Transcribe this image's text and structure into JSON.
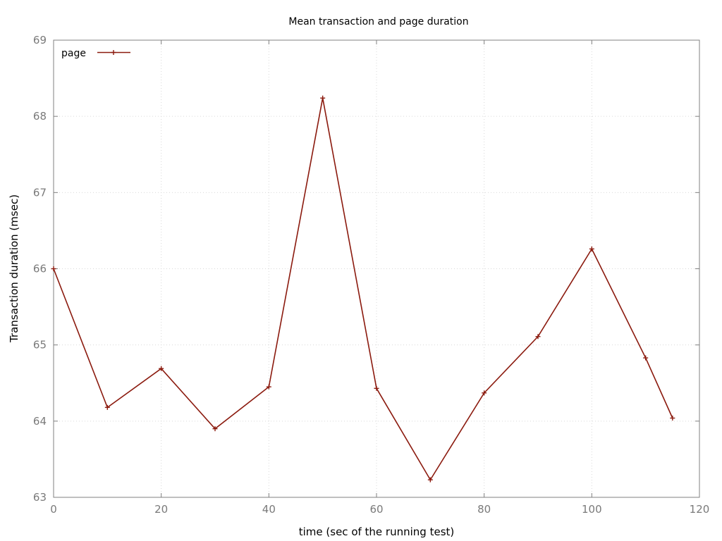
{
  "chart_data": {
    "type": "line",
    "title": "Mean transaction and page duration",
    "xlabel": "time (sec of the running test)",
    "ylabel": "Transaction duration (msec)",
    "xlim": [
      0,
      120
    ],
    "ylim": [
      63,
      69
    ],
    "xticks": [
      0,
      20,
      40,
      60,
      80,
      100,
      120
    ],
    "yticks": [
      63,
      64,
      65,
      66,
      67,
      68,
      69
    ],
    "grid": true,
    "legend_position": "top-left",
    "series": [
      {
        "name": "page",
        "color": "#8b1a0e",
        "marker": "plus",
        "x": [
          0,
          10,
          20,
          30,
          40,
          50,
          60,
          70,
          80,
          90,
          100,
          110,
          115
        ],
        "y": [
          66.0,
          64.18,
          64.69,
          63.9,
          64.45,
          68.24,
          64.43,
          63.23,
          64.37,
          65.11,
          66.26,
          64.83,
          64.04
        ]
      }
    ]
  }
}
